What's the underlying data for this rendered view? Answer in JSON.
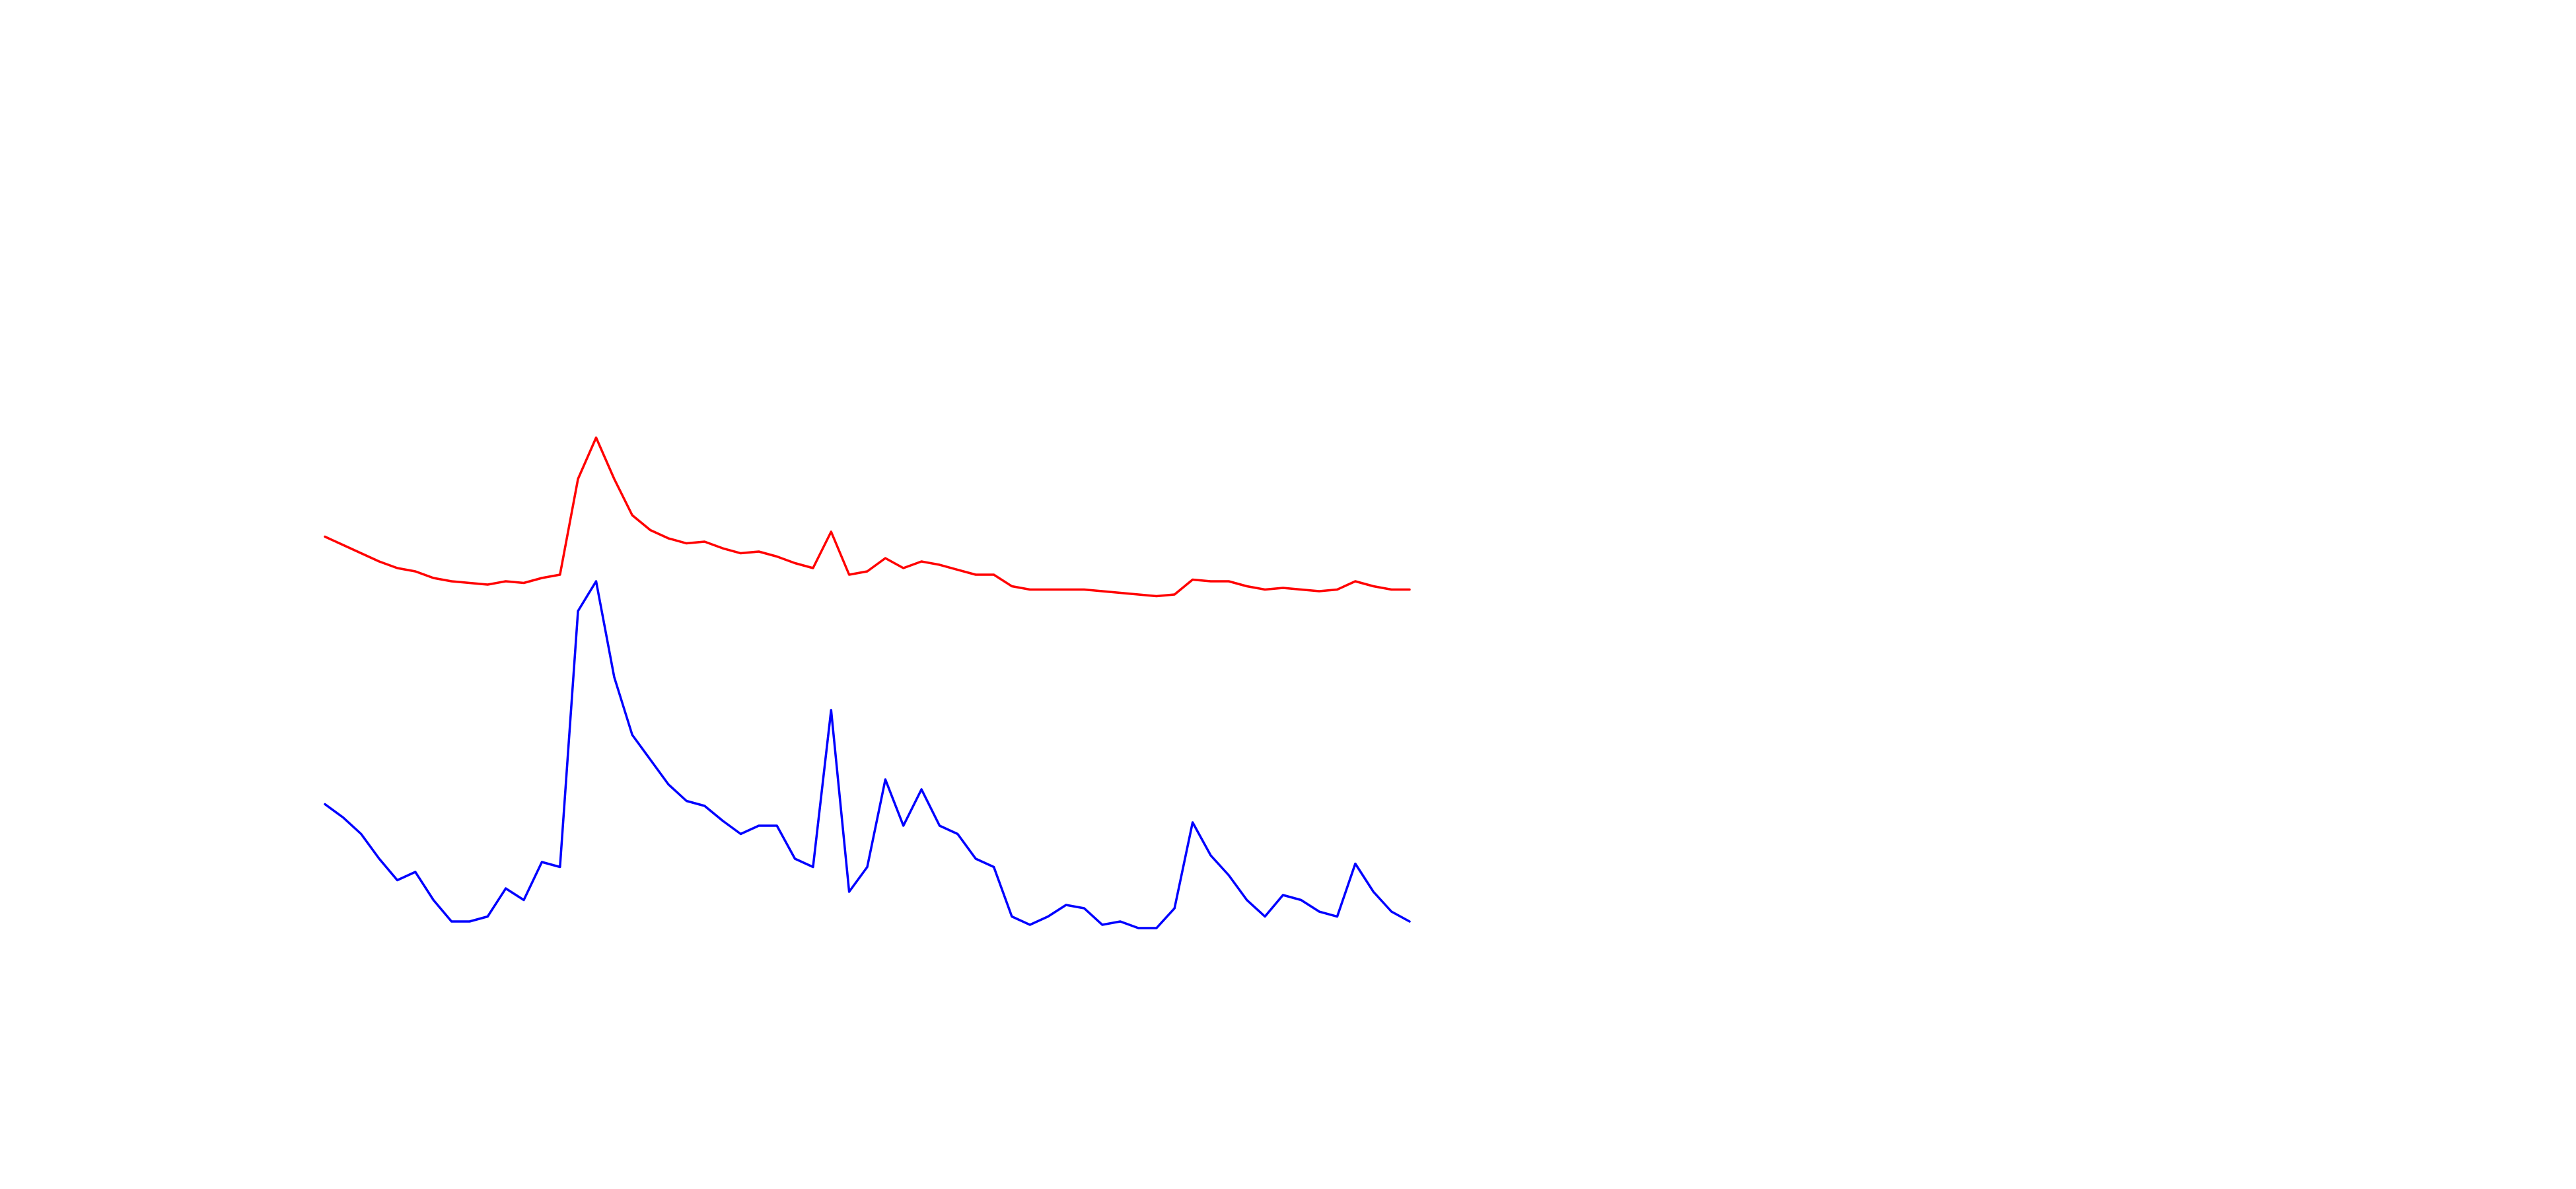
{
  "chart_data": {
    "type": "line",
    "ylim": [
      0,
      720
    ],
    "series": [
      {
        "color": "#ff0000",
        "values": [
          395,
          390,
          385,
          380,
          376,
          374,
          370,
          368,
          367,
          366,
          368,
          367,
          370,
          372,
          430,
          455,
          430,
          408,
          399,
          394,
          391,
          392,
          388,
          385,
          386,
          383,
          379,
          376,
          398,
          372,
          374,
          382,
          376,
          380,
          378,
          375,
          372,
          372,
          365,
          363,
          363,
          363,
          363,
          362,
          361,
          360,
          359,
          360,
          369,
          368,
          368,
          365,
          363,
          364,
          363,
          362,
          363,
          368,
          365,
          363,
          363
        ]
      },
      {
        "color": "#0000ff",
        "values": [
          233,
          225,
          215,
          200,
          187,
          192,
          175,
          162,
          162,
          165,
          182,
          175,
          198,
          195,
          350,
          368,
          310,
          275,
          260,
          245,
          235,
          232,
          223,
          215,
          220,
          220,
          200,
          195,
          290,
          180,
          195,
          248,
          220,
          242,
          220,
          215,
          200,
          195,
          165,
          160,
          165,
          172,
          170,
          160,
          162,
          158,
          158,
          170,
          222,
          202,
          190,
          175,
          165,
          178,
          175,
          168,
          165,
          197,
          180,
          168,
          162
        ]
      }
    ]
  }
}
